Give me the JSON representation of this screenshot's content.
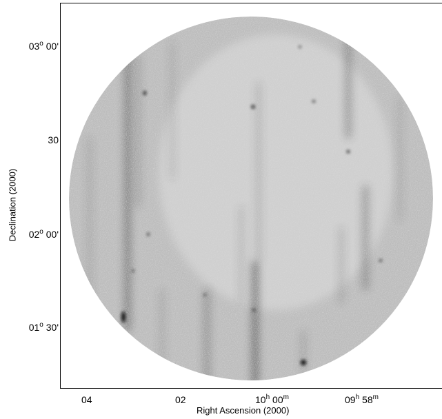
{
  "axes": {
    "ylabel": "Declination (2000)",
    "xlabel": "Right Ascension (2000)",
    "yticks": [
      {
        "main": "03",
        "sup": "o",
        "rest": " 00'"
      },
      {
        "main": "30",
        "sup": "",
        "rest": ""
      },
      {
        "main": "02",
        "sup": "o",
        "rest": " 00'"
      },
      {
        "main": "01",
        "sup": "o",
        "rest": " 30'"
      }
    ],
    "xticks": [
      {
        "main": "04",
        "sup": "",
        "rest": "",
        "sup2": "",
        "rest2": ""
      },
      {
        "main": "02",
        "sup": "",
        "rest": "",
        "sup2": "",
        "rest2": ""
      },
      {
        "main": "10",
        "sup": "h",
        "rest": " 00",
        "sup2": "m",
        "rest2": ""
      },
      {
        "main": "09",
        "sup": "h",
        "rest": " 58",
        "sup2": "m",
        "rest2": ""
      }
    ]
  },
  "image": {
    "background": "#bdbdbd",
    "streak_color": "#3a3a3a",
    "source_color": "#111111"
  }
}
